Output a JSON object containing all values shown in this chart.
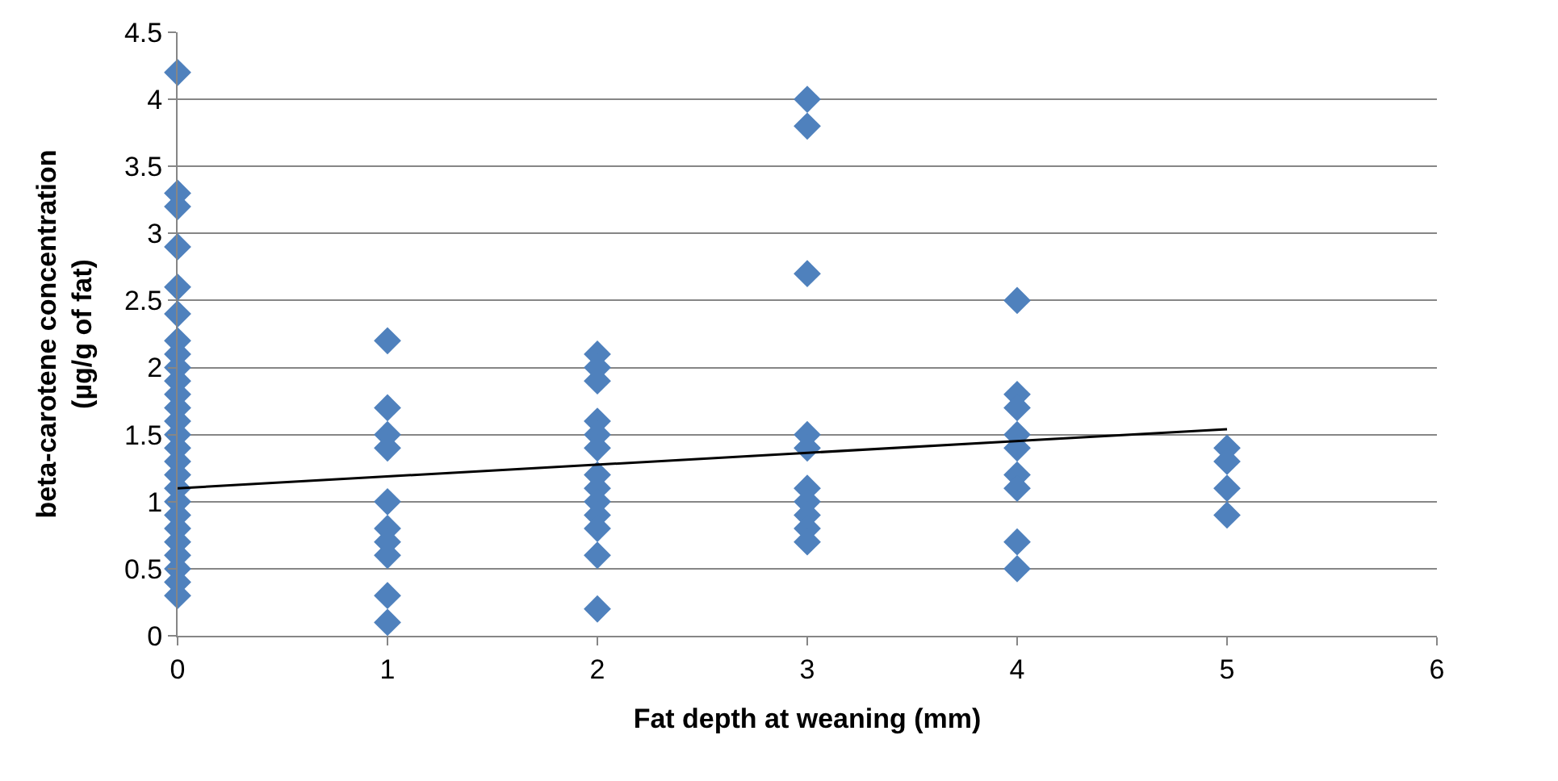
{
  "chart_data": {
    "type": "scatter",
    "xlabel": "Fat depth at weaning (mm)",
    "ylabel": "beta-carotene concentration\n(µg/g of fat)",
    "xlim": [
      0,
      6
    ],
    "xticks": [
      0,
      1,
      2,
      3,
      4,
      5,
      6
    ],
    "ylim": [
      0,
      4.5
    ],
    "yticks": [
      0,
      0.5,
      1,
      1.5,
      2,
      2.5,
      3,
      3.5,
      4,
      4.5
    ],
    "grid": "y",
    "marker": "diamond",
    "series": [
      {
        "color": "#4f81bd",
        "x": [
          0,
          0,
          0,
          0,
          0,
          0,
          0,
          0,
          0,
          0,
          0,
          0,
          0,
          0,
          0,
          0,
          0,
          0,
          0,
          0,
          0,
          0,
          0,
          0,
          0,
          0,
          1,
          1,
          1,
          1,
          1,
          1,
          1,
          1,
          1,
          1,
          2,
          2,
          2,
          2,
          2,
          2,
          2,
          2,
          2,
          2,
          2,
          2,
          2,
          3,
          3,
          3,
          3,
          3,
          3,
          3,
          3,
          3,
          3,
          4,
          4,
          4,
          4,
          4,
          4,
          4,
          4,
          4,
          5,
          5,
          5,
          5
        ],
        "values": [
          4.2,
          3.3,
          3.2,
          2.9,
          2.6,
          2.4,
          2.2,
          2.1,
          2.0,
          1.9,
          1.8,
          1.7,
          1.6,
          1.5,
          1.4,
          1.3,
          1.2,
          1.1,
          1.0,
          0.9,
          0.8,
          0.7,
          0.6,
          0.5,
          0.4,
          0.3,
          2.2,
          1.7,
          1.5,
          1.4,
          1.0,
          0.8,
          0.7,
          0.6,
          0.3,
          0.1,
          2.1,
          2.0,
          1.9,
          1.6,
          1.5,
          1.4,
          1.2,
          1.1,
          1.0,
          0.9,
          0.8,
          0.6,
          0.2,
          4.0,
          3.8,
          2.7,
          1.5,
          1.4,
          1.1,
          1.0,
          0.9,
          0.8,
          0.7,
          2.5,
          1.8,
          1.7,
          1.5,
          1.4,
          1.2,
          1.1,
          0.7,
          0.5,
          1.4,
          1.3,
          1.1,
          0.9
        ]
      },
      {
        "type": "line",
        "color": "#000000",
        "marker": "none",
        "x": [
          0,
          5
        ],
        "values": [
          1.1,
          1.54
        ]
      }
    ]
  }
}
